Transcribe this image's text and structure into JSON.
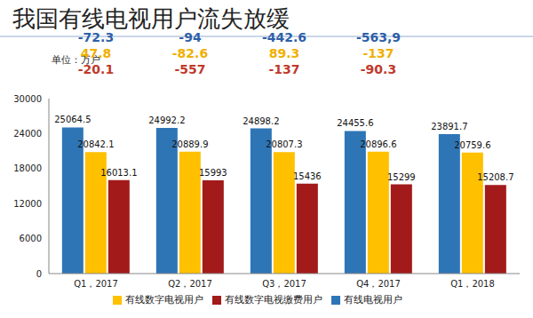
{
  "chart_data": {
    "type": "bar",
    "title": "我国有线电视用户流失放缓",
    "subtitle": "单位：万户",
    "categories": [
      "Q1，2017",
      "Q2，2017",
      "Q3，2017",
      "Q4，2017",
      "Q1，2018"
    ],
    "series": [
      {
        "name": "有线电视用户",
        "color": "#2e75b6",
        "values": [
          25064.5,
          24992.2,
          24898.2,
          24455.6,
          23891.7
        ],
        "annotations": [
          "-72.3",
          "-94",
          "-442.6",
          "-563,9",
          null
        ]
      },
      {
        "name": "有线数字电视用户",
        "color": "#ffc000",
        "values": [
          20842.1,
          20889.9,
          20807.3,
          20896.6,
          20759.6
        ],
        "annotations": [
          "47.8",
          "-82.6",
          "89.3",
          "-137",
          null
        ]
      },
      {
        "name": "有线数字电视缴费用户",
        "color": "#a31a1a",
        "values": [
          16013.1,
          15993,
          15436,
          15299,
          15208.7
        ],
        "annotations": [
          "-20.1",
          "-557",
          "-137",
          "-90.3",
          null
        ]
      }
    ],
    "ylim": [
      0,
      30000
    ],
    "yticks": [
      0,
      6000,
      12000,
      18000,
      24000,
      30000
    ],
    "grid": false,
    "legend": "bottom",
    "data_labels": true
  }
}
